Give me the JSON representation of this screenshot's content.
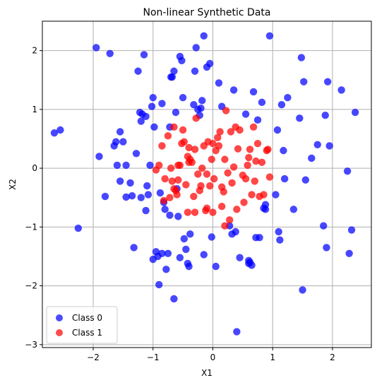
{
  "chart_data": {
    "type": "scatter",
    "title": "Non-linear Synthetic Data",
    "xlabel": "X1",
    "ylabel": "X2",
    "xlim": [
      -2.85,
      2.65
    ],
    "ylim": [
      -3.05,
      2.5
    ],
    "xticks": [
      -2,
      -1,
      0,
      1,
      2
    ],
    "yticks": [
      -3,
      -2,
      -1,
      0,
      1,
      2
    ],
    "grid": true,
    "legend_position": "lower-left",
    "series": [
      {
        "name": "Class 0",
        "color": "#0000ff",
        "points": [
          [
            -2.65,
            0.6
          ],
          [
            -2.55,
            0.65
          ],
          [
            -1.95,
            2.05
          ],
          [
            -1.9,
            0.2
          ],
          [
            -1.8,
            -0.48
          ],
          [
            -1.72,
            1.95
          ],
          [
            -1.65,
            0.38
          ],
          [
            -1.62,
            0.45
          ],
          [
            -1.55,
            0.62
          ],
          [
            -1.5,
            0.45
          ],
          [
            -1.45,
            0.05
          ],
          [
            -1.38,
            -0.25
          ],
          [
            -1.32,
            -1.35
          ],
          [
            -1.28,
            0.25
          ],
          [
            -1.25,
            1.65
          ],
          [
            -1.22,
            0.95
          ],
          [
            -1.2,
            0.8
          ],
          [
            -1.18,
            0.92
          ],
          [
            -1.15,
            1.93
          ],
          [
            -1.12,
            0.88
          ],
          [
            -1.1,
            -0.3
          ],
          [
            -1.08,
            -0.45
          ],
          [
            -1.05,
            0.05
          ],
          [
            -1.02,
            1.05
          ],
          [
            -1.0,
            1.2
          ],
          [
            -0.98,
            0.7
          ],
          [
            -0.95,
            -1.42
          ],
          [
            -0.92,
            -1.5
          ],
          [
            -0.88,
            -0.42
          ],
          [
            -0.85,
            1.1
          ],
          [
            -0.82,
            -0.58
          ],
          [
            -0.8,
            -0.7
          ],
          [
            -0.78,
            -1.72
          ],
          [
            -0.75,
            -1.45
          ],
          [
            -0.72,
            0.7
          ],
          [
            -0.7,
            1.55
          ],
          [
            -0.68,
            1.55
          ],
          [
            -0.65,
            1.65
          ],
          [
            -0.62,
            0.95
          ],
          [
            -0.6,
            -0.35
          ],
          [
            -0.58,
            -0.82
          ],
          [
            -0.55,
            1.9
          ],
          [
            -0.52,
            1.83
          ],
          [
            -0.5,
            1.2
          ],
          [
            -0.48,
            -1.2
          ],
          [
            -0.45,
            -1.38
          ],
          [
            -0.42,
            -1.62
          ],
          [
            -0.4,
            -1.67
          ],
          [
            -0.38,
            -1.12
          ],
          [
            -0.32,
            1.08
          ],
          [
            -0.3,
            1.65
          ],
          [
            -0.28,
            2.05
          ],
          [
            -0.25,
            1.0
          ],
          [
            -0.22,
            0.9
          ],
          [
            -0.2,
            1.02
          ],
          [
            -0.18,
            1.15
          ],
          [
            -0.15,
            2.25
          ],
          [
            -0.1,
            1.72
          ],
          [
            -0.05,
            1.78
          ],
          [
            -0.02,
            -1.17
          ],
          [
            0.05,
            -1.67
          ],
          [
            0.1,
            1.45
          ],
          [
            0.15,
            1.05
          ],
          [
            0.28,
            -0.98
          ],
          [
            0.32,
            -1.12
          ],
          [
            0.35,
            1.33
          ],
          [
            0.38,
            -1.08
          ],
          [
            0.4,
            -2.78
          ],
          [
            0.45,
            -1.52
          ],
          [
            0.55,
            0.92
          ],
          [
            0.6,
            -1.62
          ],
          [
            0.62,
            -1.6
          ],
          [
            0.65,
            -1.65
          ],
          [
            0.68,
            1.3
          ],
          [
            0.72,
            -1.18
          ],
          [
            0.75,
            0.82
          ],
          [
            0.78,
            -1.18
          ],
          [
            0.82,
            1.12
          ],
          [
            0.85,
            -0.68
          ],
          [
            0.88,
            -0.62
          ],
          [
            0.95,
            2.25
          ],
          [
            1.05,
            -0.45
          ],
          [
            1.08,
            0.65
          ],
          [
            1.1,
            -1.08
          ],
          [
            1.12,
            -1.22
          ],
          [
            1.15,
            1.08
          ],
          [
            1.18,
            0.3
          ],
          [
            1.2,
            -0.18
          ],
          [
            1.25,
            1.2
          ],
          [
            1.35,
            -0.7
          ],
          [
            1.45,
            0.85
          ],
          [
            1.48,
            1.88
          ],
          [
            1.5,
            -2.07
          ],
          [
            1.52,
            1.47
          ],
          [
            1.55,
            -0.2
          ],
          [
            1.65,
            0.17
          ],
          [
            1.75,
            0.4
          ],
          [
            1.85,
            -0.98
          ],
          [
            1.88,
            0.9
          ],
          [
            1.9,
            -1.35
          ],
          [
            1.92,
            1.47
          ],
          [
            1.95,
            0.38
          ],
          [
            2.15,
            1.33
          ],
          [
            2.25,
            -0.05
          ],
          [
            2.28,
            -1.45
          ],
          [
            2.32,
            -1.05
          ],
          [
            2.38,
            0.95
          ],
          [
            -2.25,
            -1.02
          ],
          [
            -1.55,
            -0.22
          ],
          [
            -1.6,
            0.05
          ],
          [
            -1.45,
            -0.49
          ],
          [
            -1.35,
            -0.47
          ],
          [
            -1.2,
            -0.5
          ],
          [
            -1.12,
            -0.72
          ],
          [
            -1.0,
            -1.55
          ],
          [
            -0.9,
            -1.98
          ],
          [
            -0.85,
            -1.45
          ],
          [
            -0.72,
            -0.8
          ],
          [
            -0.65,
            -2.22
          ],
          [
            -0.55,
            -1.52
          ],
          [
            -0.15,
            -1.47
          ],
          [
            0.88,
            -0.7
          ],
          [
            0.6,
            -1.57
          ]
        ]
      },
      {
        "name": "Class 1",
        "color": "#ff0000",
        "points": [
          [
            -0.9,
            0.05
          ],
          [
            -0.85,
            0.38
          ],
          [
            -0.8,
            -0.18
          ],
          [
            -0.75,
            0.55
          ],
          [
            -0.7,
            0.0
          ],
          [
            -0.68,
            -0.22
          ],
          [
            -0.65,
            0.7
          ],
          [
            -0.62,
            -0.38
          ],
          [
            -0.6,
            -0.45
          ],
          [
            -0.58,
            -0.2
          ],
          [
            -0.55,
            0.05
          ],
          [
            -0.52,
            0.42
          ],
          [
            -0.5,
            0.65
          ],
          [
            -0.48,
            0.45
          ],
          [
            -0.45,
            -0.28
          ],
          [
            -0.42,
            0.2
          ],
          [
            -0.4,
            0.1
          ],
          [
            -0.38,
            0.15
          ],
          [
            -0.35,
            0.1
          ],
          [
            -0.32,
            -0.48
          ],
          [
            -0.3,
            0.32
          ],
          [
            -0.28,
            0.85
          ],
          [
            -0.25,
            -0.1
          ],
          [
            -0.22,
            -0.38
          ],
          [
            -0.2,
            -0.3
          ],
          [
            -0.18,
            0.0
          ],
          [
            -0.15,
            0.38
          ],
          [
            -0.12,
            -0.72
          ],
          [
            -0.1,
            -0.1
          ],
          [
            -0.08,
            0.45
          ],
          [
            -0.05,
            -0.3
          ],
          [
            -0.02,
            0.15
          ],
          [
            0.0,
            0.42
          ],
          [
            0.02,
            -0.18
          ],
          [
            0.05,
            0.3
          ],
          [
            0.08,
            0.52
          ],
          [
            0.1,
            0.38
          ],
          [
            0.12,
            0.62
          ],
          [
            0.15,
            -0.32
          ],
          [
            0.18,
            -0.4
          ],
          [
            0.2,
            0.15
          ],
          [
            0.22,
            0.98
          ],
          [
            0.25,
            -0.08
          ],
          [
            0.28,
            -0.88
          ],
          [
            0.3,
            0.62
          ],
          [
            0.32,
            -0.25
          ],
          [
            0.35,
            0.02
          ],
          [
            0.38,
            0.7
          ],
          [
            0.4,
            -0.7
          ],
          [
            0.42,
            0.33
          ],
          [
            0.45,
            0.65
          ],
          [
            0.5,
            -0.12
          ],
          [
            0.52,
            -0.58
          ],
          [
            0.55,
            -0.18
          ],
          [
            0.58,
            0.05
          ],
          [
            0.6,
            0.18
          ],
          [
            0.62,
            0.32
          ],
          [
            0.65,
            -0.45
          ],
          [
            0.68,
            0.7
          ],
          [
            0.7,
            -0.22
          ],
          [
            0.72,
            0.12
          ],
          [
            0.75,
            0.42
          ],
          [
            0.78,
            -0.48
          ],
          [
            0.82,
            0.1
          ],
          [
            0.85,
            -0.45
          ],
          [
            0.9,
            0.3
          ],
          [
            0.92,
            0.32
          ],
          [
            0.95,
            -0.15
          ],
          [
            -0.95,
            -0.03
          ],
          [
            -0.82,
            -0.55
          ],
          [
            -0.72,
            -0.5
          ],
          [
            -0.65,
            -0.35
          ],
          [
            -0.42,
            -0.75
          ],
          [
            -0.3,
            -0.75
          ],
          [
            -0.1,
            -0.68
          ],
          [
            0.0,
            -0.75
          ],
          [
            0.15,
            -0.65
          ],
          [
            0.2,
            -0.98
          ],
          [
            -0.4,
            0.35
          ],
          [
            -0.58,
            0.05
          ]
        ]
      }
    ]
  }
}
